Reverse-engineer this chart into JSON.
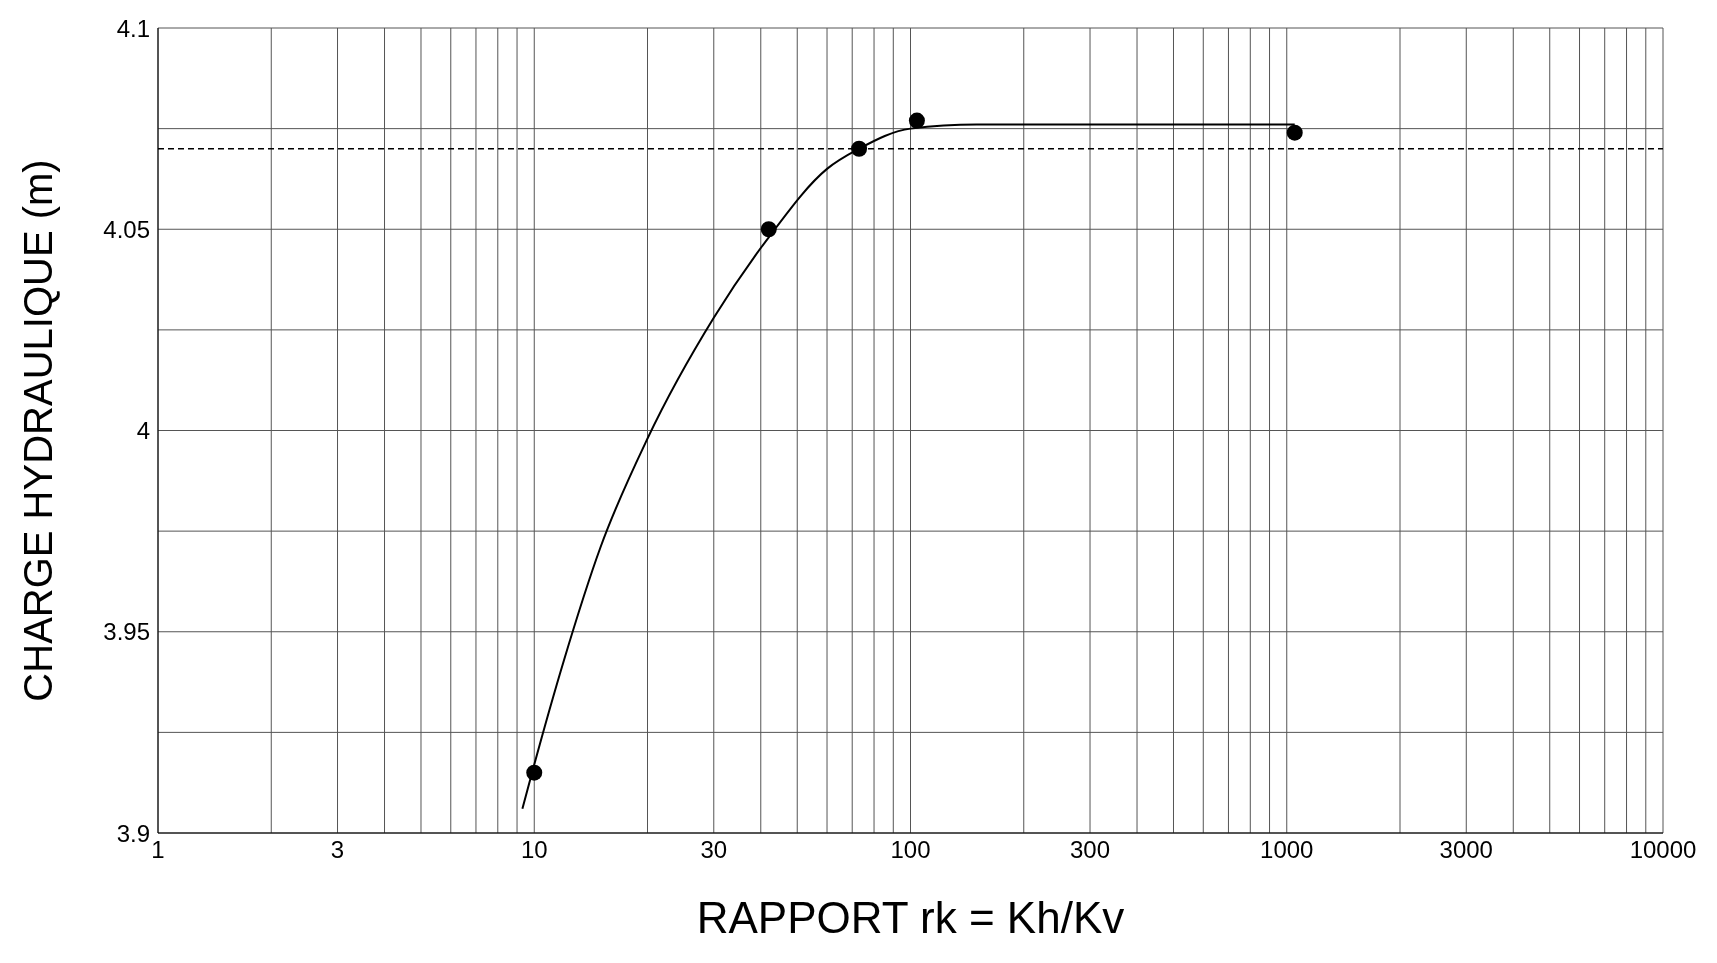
{
  "chart_data": {
    "type": "scatter",
    "xlabel": "RAPPORT rk = Kh/Kv",
    "ylabel": "CHARGE HYDRAULIQUE (m)",
    "log": "x",
    "grid": true,
    "legend": false,
    "xlim": [
      1,
      10000
    ],
    "xticks": [
      1,
      {
        "value": 2,
        "label": null
      },
      3,
      {
        "value": 4,
        "label": null
      },
      {
        "value": 5,
        "label": null
      },
      {
        "value": 6,
        "label": null
      },
      {
        "value": 7,
        "label": null
      },
      {
        "value": 8,
        "label": null
      },
      {
        "value": 9,
        "label": null
      },
      10,
      {
        "value": 20,
        "label": null
      },
      30,
      {
        "value": 40,
        "label": null
      },
      {
        "value": 50,
        "label": null
      },
      {
        "value": 60,
        "label": null
      },
      {
        "value": 70,
        "label": null
      },
      {
        "value": 80,
        "label": null
      },
      {
        "value": 90,
        "label": null
      },
      100,
      {
        "value": 200,
        "label": null
      },
      300,
      {
        "value": 400,
        "label": null
      },
      {
        "value": 500,
        "label": null
      },
      {
        "value": 600,
        "label": null
      },
      {
        "value": 700,
        "label": null
      },
      {
        "value": 800,
        "label": null
      },
      {
        "value": 900,
        "label": null
      },
      1000,
      {
        "value": 2000,
        "label": null
      },
      3000,
      {
        "value": 4000,
        "label": null
      },
      {
        "value": 5000,
        "label": null
      },
      {
        "value": 6000,
        "label": null
      },
      {
        "value": 7000,
        "label": null
      },
      {
        "value": 8000,
        "label": null
      },
      {
        "value": 9000,
        "label": null
      },
      10000
    ],
    "ylim": [
      3.9,
      4.1
    ],
    "yticks": [
      3.9,
      {
        "value": 3.925,
        "label": null
      },
      3.95,
      {
        "value": 3.975,
        "label": null
      },
      4,
      {
        "value": 4.025,
        "label": null
      },
      4.05,
      {
        "value": 4.075,
        "label": null
      },
      4.1
    ],
    "ref_lines": [
      {
        "axis": "y",
        "value": 4.07,
        "line_style": "dashed",
        "color": "#000000"
      }
    ],
    "series": [
      {
        "color": "#000000",
        "marker": "circle",
        "x": [
          10,
          42,
          73,
          104,
          1050
        ],
        "values": [
          3.915,
          4.05,
          4.07,
          4.077,
          4.074
        ]
      },
      {
        "type": "line",
        "color": "#000000",
        "marker": "none",
        "line_style": "solid",
        "x": [
          9.3,
          10,
          12,
          15,
          20,
          30,
          42,
          60,
          73,
          100,
          150,
          300,
          1000,
          1050
        ],
        "values": [
          3.906,
          3.917,
          3.943,
          3.971,
          3.998,
          4.028,
          4.048,
          4.065,
          4.07,
          4.075,
          4.076,
          4.076,
          4.076,
          4.076
        ]
      }
    ]
  }
}
